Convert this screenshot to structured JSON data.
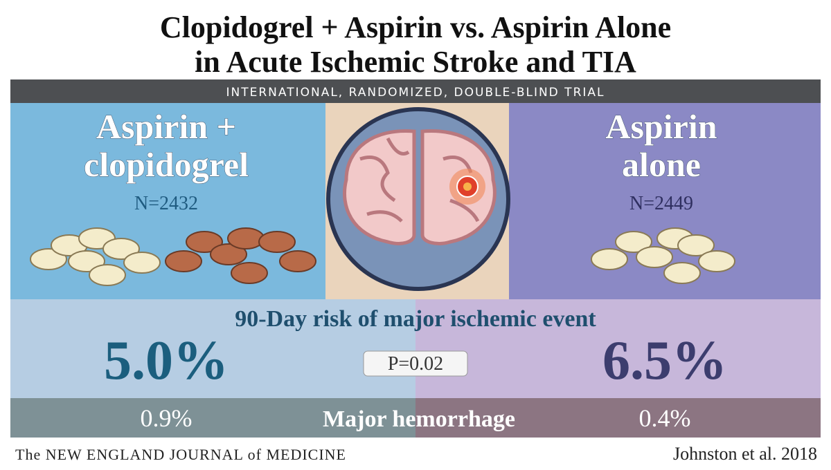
{
  "header": {
    "title_lines": [
      "Clopidogrel + Aspirin vs. Aspirin Alone",
      "in Acute Ischemic Stroke and TIA"
    ],
    "banner": "INTERNATIONAL, RANDOMIZED, DOUBLE-BLIND TRIAL"
  },
  "arms": [
    {
      "name_lines": [
        "Aspirin +",
        "clopidogrel"
      ],
      "n": "N=2432",
      "ischemic_risk": "5.0%",
      "hemorrhage": "0.9%"
    },
    {
      "name_lines": [
        "Aspirin",
        "alone"
      ],
      "n": "N=2449",
      "ischemic_risk": "6.5%",
      "hemorrhage": "0.4%"
    }
  ],
  "outcomes": {
    "ischemic_label": "90-Day risk of major ischemic event",
    "p_value": "P=0.02",
    "hemorrhage_label": "Major hemorrhage"
  },
  "footer": {
    "journal": "The NEW ENGLAND JOURNAL of MEDICINE",
    "citation": "Johnston et al. 2018"
  }
}
